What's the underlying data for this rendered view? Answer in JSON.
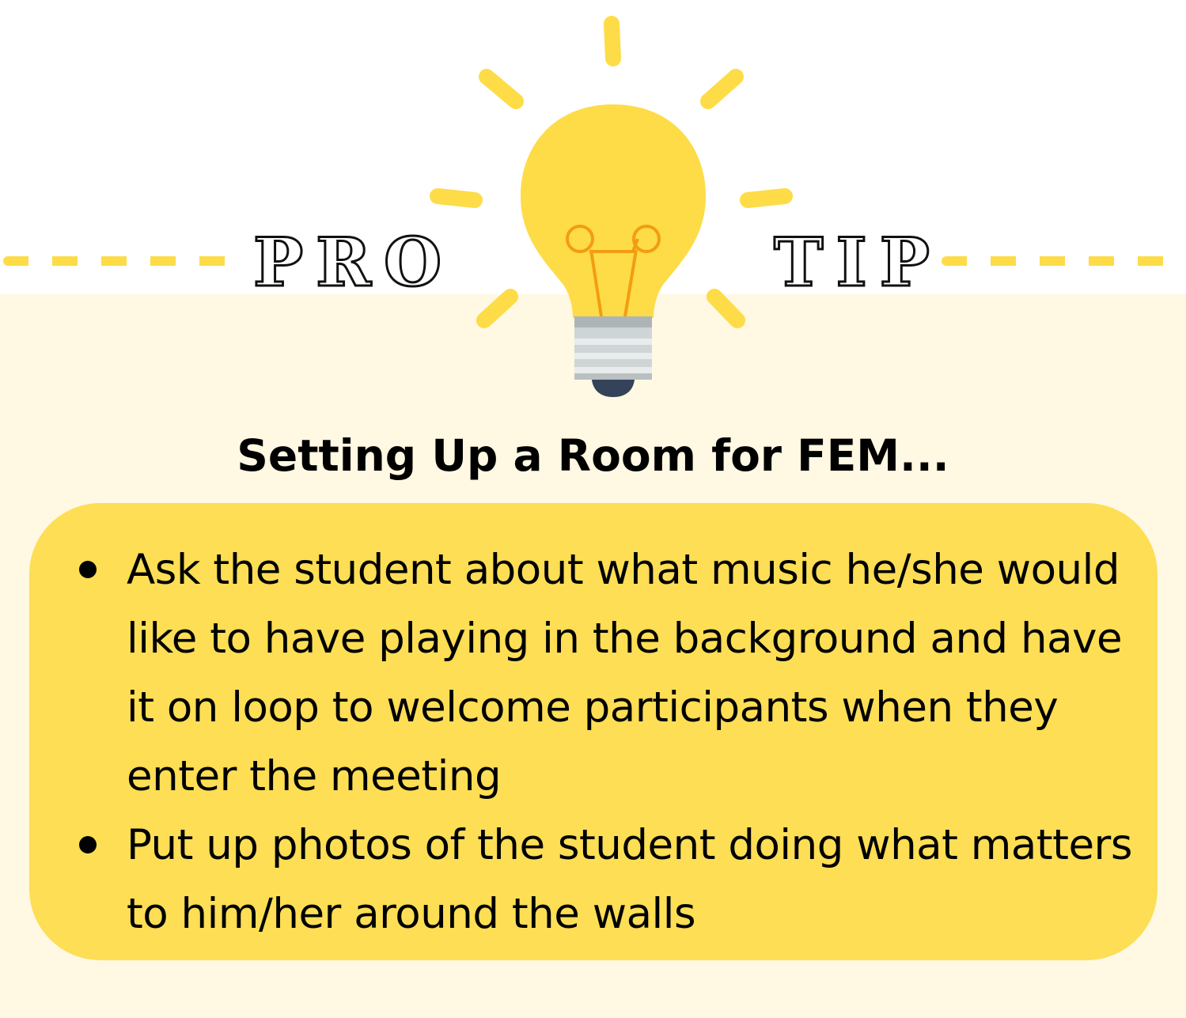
{
  "banner": {
    "left_word": "PRO",
    "right_word": "TIP"
  },
  "heading": "Setting Up a Room for FEM...",
  "tips": [
    "Ask the student about what music he/she would like to have playing in the background and have it on loop to welcome participants when they enter the meeting",
    "Put up photos of the student doing what matters to him/her around the walls"
  ],
  "icons": {
    "bulb": "lightbulb-icon"
  },
  "colors": {
    "accent_yellow": "#FDDC47",
    "panel_yellow": "#FDDE54",
    "cream_background": "#FFF8E3",
    "filament_orange": "#F39C12",
    "text": "#000000"
  }
}
